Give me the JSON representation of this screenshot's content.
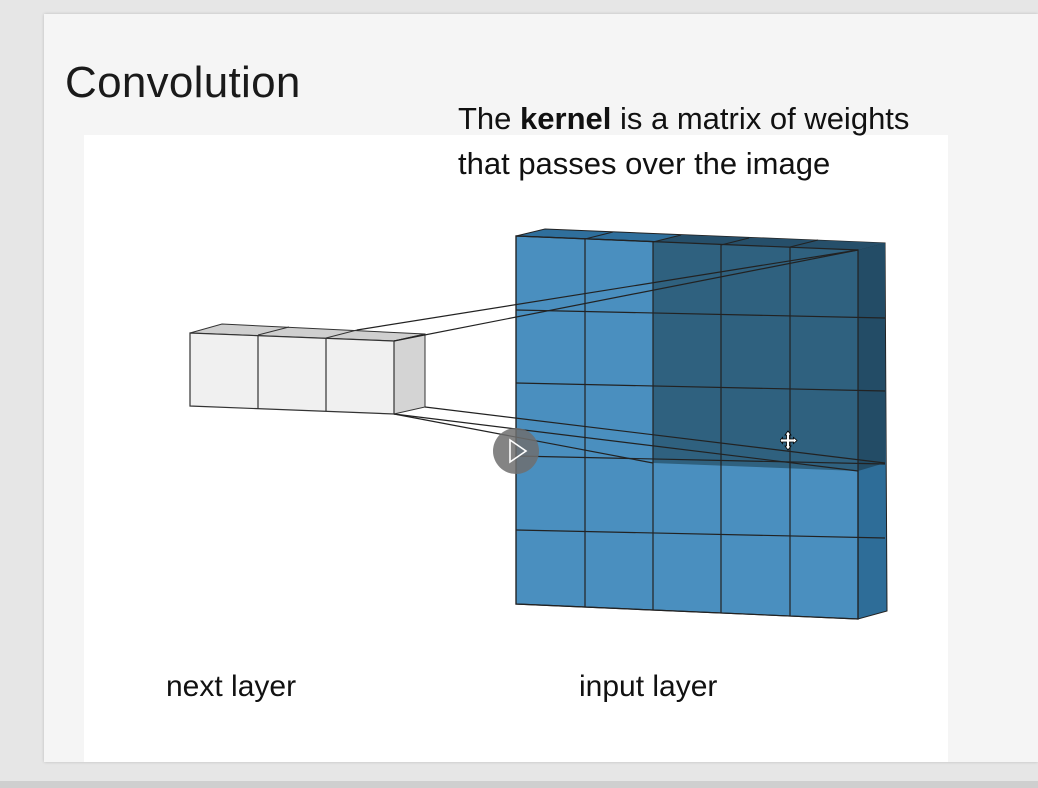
{
  "slide": {
    "title": "Convolution",
    "caption": {
      "prefix": "The ",
      "bold": "kernel",
      "line1_suffix": " is a matrix of weights",
      "line2": "that passes over the image"
    },
    "labels": {
      "next_layer": "next layer",
      "input_layer": "input layer"
    }
  },
  "colors": {
    "input_cell": "#4a8fbf",
    "kernel_cell": "#2f617f",
    "next_layer_cell": "#f0f0f0",
    "slide_background": "#f5f5f5"
  },
  "icons": {
    "play": "play-icon",
    "cursor": "move-cursor-icon"
  }
}
